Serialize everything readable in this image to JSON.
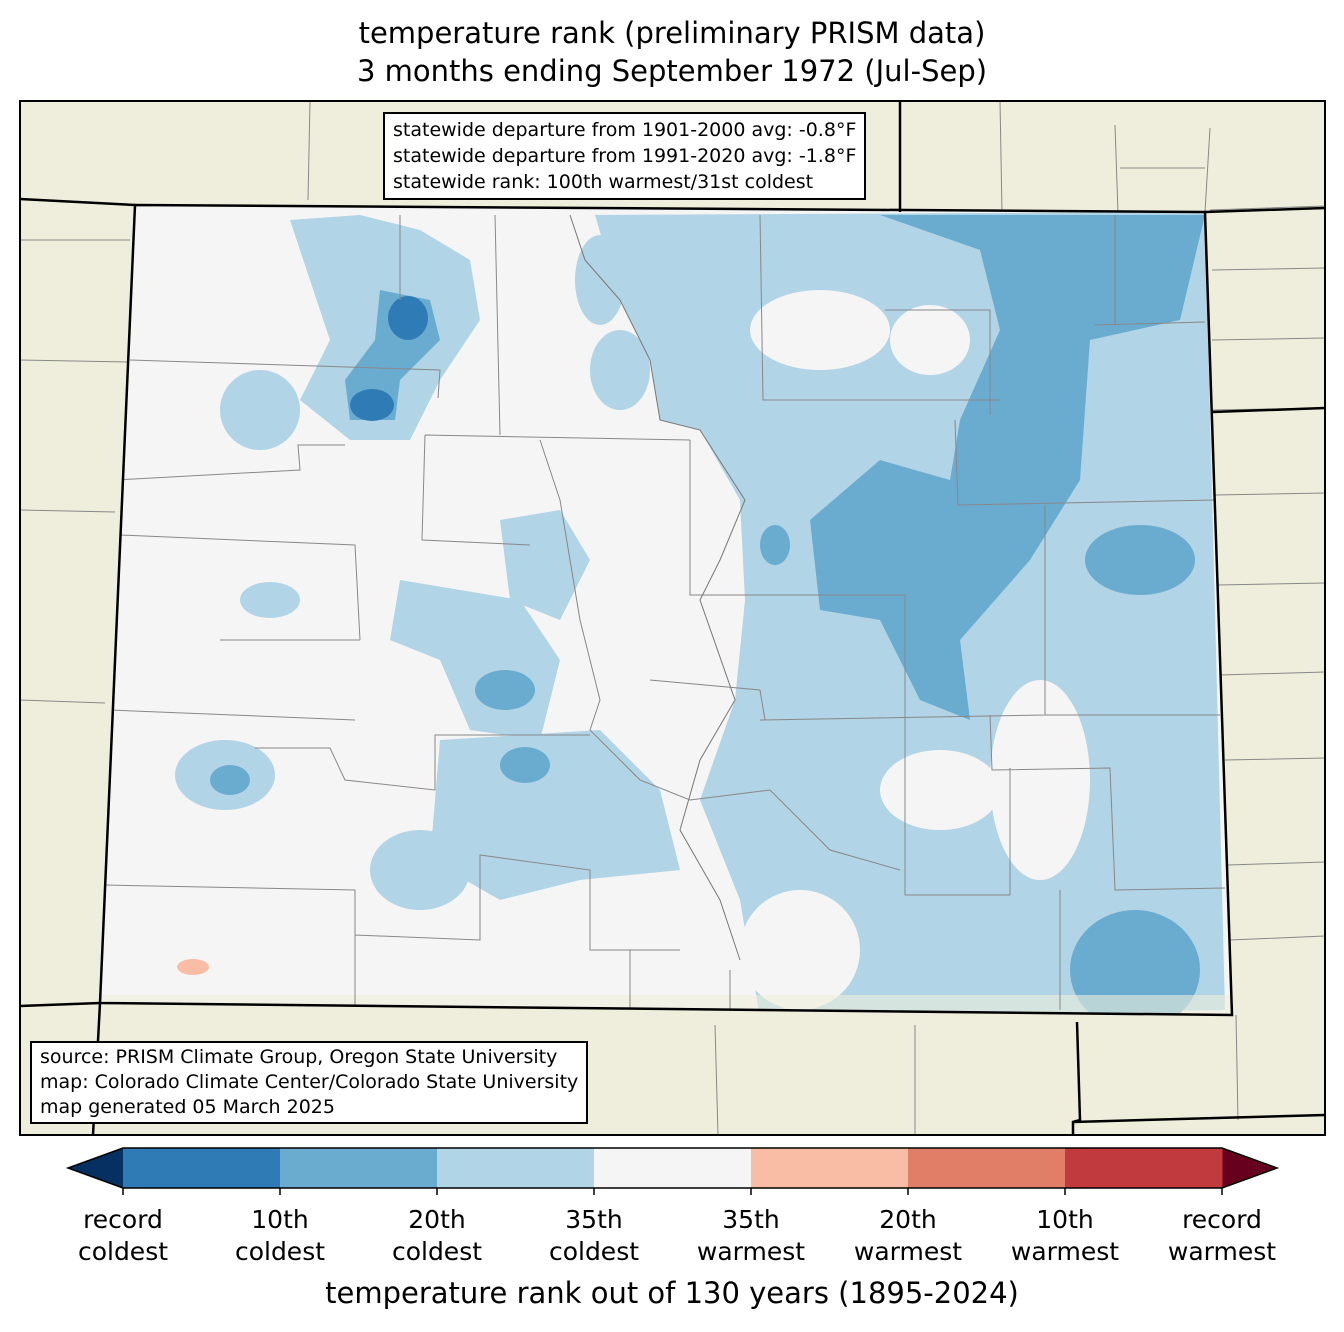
{
  "title": {
    "line1": "temperature rank (preliminary PRISM data)",
    "line2": "3 months ending September 1972 (Jul-Sep)"
  },
  "stats_box": {
    "line1": "statewide departure from 1901-2000 avg: -0.8°F",
    "line2": "statewide departure from 1991-2020 avg: -1.8°F",
    "line3": "statewide rank: 100th warmest/31st coldest"
  },
  "source_box": {
    "line1": "source: PRISM Climate Group, Oregon State University",
    "line2": "map: Colorado Climate Center/Colorado State University",
    "line3": "map generated 05 March 2025"
  },
  "colorbar": {
    "label": "temperature rank out of 130 years (1895-2024)",
    "ticks": [
      {
        "l1": "record",
        "l2": "coldest"
      },
      {
        "l1": "10th",
        "l2": "coldest"
      },
      {
        "l1": "20th",
        "l2": "coldest"
      },
      {
        "l1": "35th",
        "l2": "coldest"
      },
      {
        "l1": "35th",
        "l2": "warmest"
      },
      {
        "l1": "20th",
        "l2": "warmest"
      },
      {
        "l1": "10th",
        "l2": "warmest"
      },
      {
        "l1": "record",
        "l2": "warmest"
      }
    ],
    "colors": [
      "#2f7bb6",
      "#6aacd0",
      "#b1d4e6",
      "#f5f5f5",
      "#f8bda4",
      "#e07e67",
      "#c13b3e"
    ],
    "under_color": "#053061",
    "over_color": "#67001f"
  },
  "map_colors": {
    "background": "#efeedc",
    "state_fill": "#f5f5f5"
  }
}
